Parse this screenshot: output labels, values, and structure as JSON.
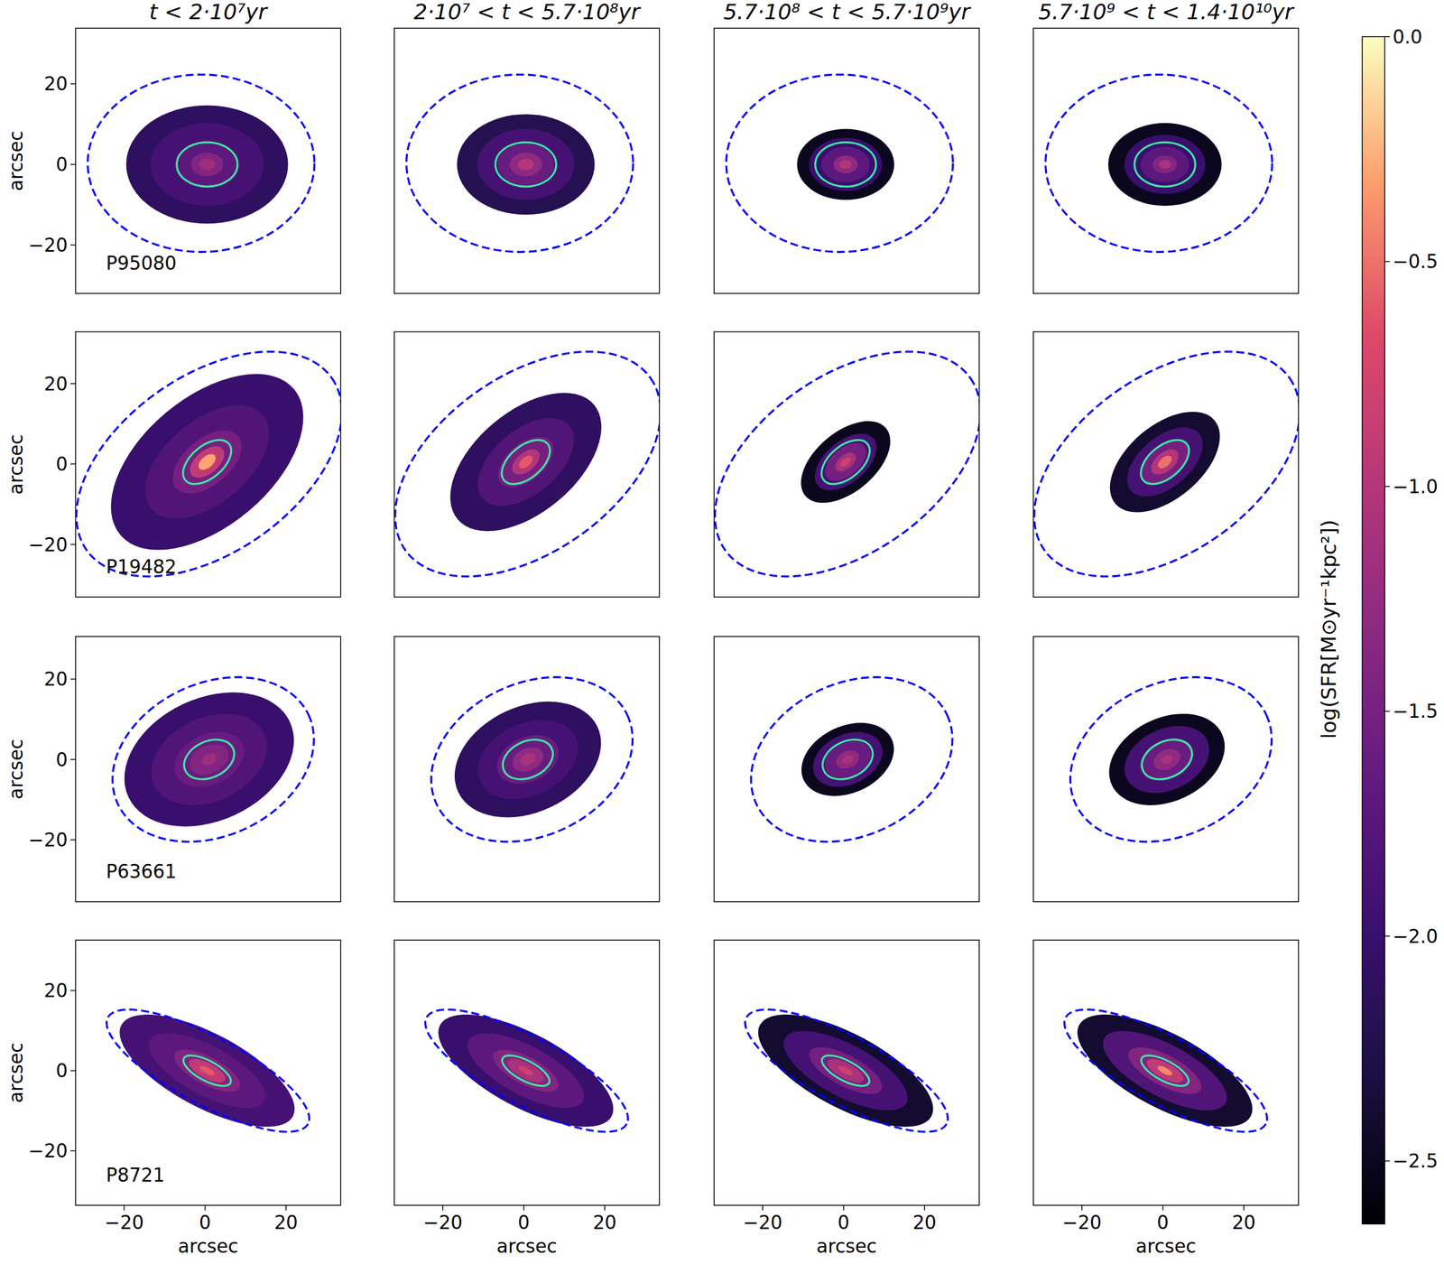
{
  "chart_data": [
    {
      "type": "heatmap",
      "title": "t < 2·10⁷yr",
      "annotation": "P95080",
      "ylabel": "arcsec",
      "xlim": [
        -32,
        33.5
      ],
      "ylim": [
        -32,
        33.8
      ],
      "yticks": [
        {
          "value": -20,
          "label": "−20"
        },
        0,
        20
      ],
      "tick_labels": "y",
      "outer_ellipse": {
        "center": [
          -1,
          0.3
        ],
        "a": 28,
        "b": 22,
        "angle": 0,
        "color": "#0000ff",
        "line_style": "dashed"
      },
      "inner_ellipse": {
        "center": [
          0.5,
          0
        ],
        "a": 7.5,
        "b": 5.5,
        "angle": 0,
        "color": "#3ee6a4",
        "line_style": "solid"
      },
      "profile": [
        {
          "r": 20,
          "value": -2.1
        },
        {
          "r": 14,
          "value": -1.9
        },
        {
          "r": 8,
          "value": -1.7
        },
        {
          "r": 4,
          "value": -1.4
        },
        {
          "r": 2,
          "value": -1.2
        }
      ]
    },
    {
      "type": "heatmap",
      "title": "2·10⁷ < t < 5.7·10⁸yr",
      "xlim": [
        -32,
        33.5
      ],
      "ylim": [
        -32,
        33.8
      ],
      "tick_labels": false,
      "outer_ellipse": {
        "center": [
          -1,
          0.3
        ],
        "a": 28,
        "b": 22,
        "angle": 0,
        "color": "#0000ff",
        "line_style": "dashed"
      },
      "inner_ellipse": {
        "center": [
          0.5,
          0
        ],
        "a": 7.5,
        "b": 5.5,
        "angle": 0,
        "color": "#3ee6a4",
        "line_style": "solid"
      },
      "profile": [
        {
          "r": 17,
          "value": -2.2
        },
        {
          "r": 12,
          "value": -1.9
        },
        {
          "r": 7,
          "value": -1.6
        },
        {
          "r": 4,
          "value": -1.3
        },
        {
          "r": 2,
          "value": -1.0
        }
      ]
    },
    {
      "type": "heatmap",
      "title": "5.7·10⁸ < t < 5.7·10⁹yr",
      "xlim": [
        -32,
        33.5
      ],
      "ylim": [
        -32,
        33.8
      ],
      "tick_labels": false,
      "outer_ellipse": {
        "center": [
          -1,
          0.3
        ],
        "a": 28,
        "b": 22,
        "angle": 0,
        "color": "#0000ff",
        "line_style": "dashed"
      },
      "inner_ellipse": {
        "center": [
          0.5,
          0
        ],
        "a": 7.5,
        "b": 5.5,
        "angle": 0,
        "color": "#3ee6a4",
        "line_style": "solid"
      },
      "profile": [
        {
          "r": 12,
          "value": -2.5
        },
        {
          "r": 9,
          "value": -2.0
        },
        {
          "r": 6,
          "value": -1.7
        },
        {
          "r": 3,
          "value": -1.3
        },
        {
          "r": 1.5,
          "value": -1.0
        }
      ]
    },
    {
      "type": "heatmap",
      "title": "5.7·10⁹ < t < 1.4·10¹⁰yr",
      "xlim": [
        -32,
        33.5
      ],
      "ylim": [
        -32,
        33.8
      ],
      "tick_labels": false,
      "outer_ellipse": {
        "center": [
          -1,
          0.3
        ],
        "a": 28,
        "b": 22,
        "angle": 0,
        "color": "#0000ff",
        "line_style": "dashed"
      },
      "inner_ellipse": {
        "center": [
          0.5,
          0
        ],
        "a": 7.5,
        "b": 5.5,
        "angle": 0,
        "color": "#3ee6a4",
        "line_style": "solid"
      },
      "profile": [
        {
          "r": 14,
          "value": -2.5
        },
        {
          "r": 10,
          "value": -2.0
        },
        {
          "r": 6,
          "value": -1.7
        },
        {
          "r": 3,
          "value": -1.4
        },
        {
          "r": 1.5,
          "value": -1.1
        }
      ]
    },
    {
      "type": "heatmap",
      "annotation": "P19482",
      "ylabel": "arcsec",
      "xlim": [
        -32,
        33.5
      ],
      "ylim": [
        -33.1,
        32.9
      ],
      "yticks": [
        {
          "value": -20,
          "label": "−20"
        },
        0,
        20
      ],
      "tick_labels": "y",
      "outer_ellipse": {
        "center": [
          1,
          0
        ],
        "a": 37,
        "b": 22,
        "angle": 35,
        "color": "#0000ff",
        "line_style": "dashed"
      },
      "inner_ellipse": {
        "center": [
          0.5,
          0.5
        ],
        "a": 7,
        "b": 4,
        "angle": 40,
        "color": "#3ee6a4",
        "line_style": "solid"
      },
      "profile": [
        {
          "r": 28,
          "value": -2.0
        },
        {
          "r": 18,
          "value": -1.8
        },
        {
          "r": 10,
          "value": -1.5
        },
        {
          "r": 5,
          "value": -0.9
        },
        {
          "r": 2.5,
          "value": -0.3
        }
      ]
    },
    {
      "type": "heatmap",
      "xlim": [
        -32,
        33.5
      ],
      "ylim": [
        -33.1,
        32.9
      ],
      "tick_labels": false,
      "outer_ellipse": {
        "center": [
          1,
          0
        ],
        "a": 37,
        "b": 22,
        "angle": 35,
        "color": "#0000ff",
        "line_style": "dashed"
      },
      "inner_ellipse": {
        "center": [
          0.5,
          0.5
        ],
        "a": 7,
        "b": 4,
        "angle": 40,
        "color": "#3ee6a4",
        "line_style": "solid"
      },
      "profile": [
        {
          "r": 22,
          "value": -2.1
        },
        {
          "r": 14,
          "value": -1.8
        },
        {
          "r": 8,
          "value": -1.5
        },
        {
          "r": 4,
          "value": -1.0
        },
        {
          "r": 2,
          "value": -0.6
        }
      ]
    },
    {
      "type": "heatmap",
      "xlim": [
        -32,
        33.5
      ],
      "ylim": [
        -33.1,
        32.9
      ],
      "tick_labels": false,
      "outer_ellipse": {
        "center": [
          1,
          0
        ],
        "a": 37,
        "b": 22,
        "angle": 35,
        "color": "#0000ff",
        "line_style": "dashed"
      },
      "inner_ellipse": {
        "center": [
          0.5,
          0.5
        ],
        "a": 7,
        "b": 4,
        "angle": 40,
        "color": "#3ee6a4",
        "line_style": "solid"
      },
      "profile": [
        {
          "r": 13,
          "value": -2.5
        },
        {
          "r": 9,
          "value": -1.9
        },
        {
          "r": 6,
          "value": -1.5
        },
        {
          "r": 3,
          "value": -1.1
        },
        {
          "r": 1.5,
          "value": -0.8
        }
      ]
    },
    {
      "type": "heatmap",
      "xlim": [
        -32,
        33.5
      ],
      "ylim": [
        -33.1,
        32.9
      ],
      "tick_labels": false,
      "outer_ellipse": {
        "center": [
          1,
          0
        ],
        "a": 37,
        "b": 22,
        "angle": 35,
        "color": "#0000ff",
        "line_style": "dashed"
      },
      "inner_ellipse": {
        "center": [
          0.5,
          0.5
        ],
        "a": 7,
        "b": 4,
        "angle": 40,
        "color": "#3ee6a4",
        "line_style": "solid"
      },
      "profile": [
        {
          "r": 16,
          "value": -2.4
        },
        {
          "r": 11,
          "value": -1.9
        },
        {
          "r": 7,
          "value": -1.5
        },
        {
          "r": 4,
          "value": -1.0
        },
        {
          "r": 2,
          "value": -0.5
        }
      ]
    },
    {
      "type": "heatmap",
      "annotation": "P63661",
      "ylabel": "arcsec",
      "xlim": [
        -32,
        33.5
      ],
      "ylim": [
        -35.4,
        30.6
      ],
      "yticks": [
        {
          "value": -20,
          "label": "−20"
        },
        0,
        20
      ],
      "tick_labels": "y",
      "outer_ellipse": {
        "center": [
          2,
          0
        ],
        "a": 26,
        "b": 19,
        "angle": 25,
        "color": "#0000ff",
        "line_style": "dashed"
      },
      "inner_ellipse": {
        "center": [
          1,
          0
        ],
        "a": 6.5,
        "b": 4.5,
        "angle": 25,
        "color": "#3ee6a4",
        "line_style": "solid"
      },
      "profile": [
        {
          "r": 22,
          "value": -2.0
        },
        {
          "r": 15,
          "value": -1.8
        },
        {
          "r": 9,
          "value": -1.6
        },
        {
          "r": 5,
          "value": -1.4
        },
        {
          "r": 2,
          "value": -1.2
        }
      ]
    },
    {
      "type": "heatmap",
      "xlim": [
        -32,
        33.5
      ],
      "ylim": [
        -35.4,
        30.6
      ],
      "tick_labels": false,
      "outer_ellipse": {
        "center": [
          2,
          0
        ],
        "a": 26,
        "b": 19,
        "angle": 25,
        "color": "#0000ff",
        "line_style": "dashed"
      },
      "inner_ellipse": {
        "center": [
          1,
          0
        ],
        "a": 6.5,
        "b": 4.5,
        "angle": 25,
        "color": "#3ee6a4",
        "line_style": "solid"
      },
      "profile": [
        {
          "r": 19,
          "value": -2.1
        },
        {
          "r": 13,
          "value": -1.9
        },
        {
          "r": 8,
          "value": -1.6
        },
        {
          "r": 4,
          "value": -1.3
        },
        {
          "r": 2,
          "value": -1.1
        }
      ]
    },
    {
      "type": "heatmap",
      "xlim": [
        -32,
        33.5
      ],
      "ylim": [
        -35.4,
        30.6
      ],
      "tick_labels": false,
      "outer_ellipse": {
        "center": [
          2,
          0
        ],
        "a": 26,
        "b": 19,
        "angle": 25,
        "color": "#0000ff",
        "line_style": "dashed"
      },
      "inner_ellipse": {
        "center": [
          1,
          0
        ],
        "a": 6.5,
        "b": 4.5,
        "angle": 25,
        "color": "#3ee6a4",
        "line_style": "solid"
      },
      "profile": [
        {
          "r": 12,
          "value": -2.5
        },
        {
          "r": 9,
          "value": -1.9
        },
        {
          "r": 6,
          "value": -1.6
        },
        {
          "r": 3,
          "value": -1.3
        },
        {
          "r": 1.5,
          "value": -1.1
        }
      ]
    },
    {
      "type": "heatmap",
      "xlim": [
        -32,
        33.5
      ],
      "ylim": [
        -35.4,
        30.6
      ],
      "tick_labels": false,
      "outer_ellipse": {
        "center": [
          2,
          0
        ],
        "a": 26,
        "b": 19,
        "angle": 25,
        "color": "#0000ff",
        "line_style": "dashed"
      },
      "inner_ellipse": {
        "center": [
          1,
          0
        ],
        "a": 6.5,
        "b": 4.5,
        "angle": 25,
        "color": "#3ee6a4",
        "line_style": "solid"
      },
      "profile": [
        {
          "r": 15,
          "value": -2.5
        },
        {
          "r": 11,
          "value": -1.9
        },
        {
          "r": 7,
          "value": -1.6
        },
        {
          "r": 3.5,
          "value": -1.3
        },
        {
          "r": 1.5,
          "value": -1.1
        }
      ]
    },
    {
      "type": "heatmap",
      "annotation": "P8721",
      "ylabel": "arcsec",
      "xlabel": "arcsec",
      "xlim": [
        -32,
        33.5
      ],
      "ylim": [
        -33.6,
        32.6
      ],
      "xticks": [
        {
          "value": -20,
          "label": "−20"
        },
        0,
        20
      ],
      "yticks": [
        {
          "value": -20,
          "label": "−20"
        },
        0,
        20
      ],
      "tick_labels": true,
      "outer_ellipse": {
        "center": [
          0.7,
          0
        ],
        "a": 28,
        "b": 8.5,
        "angle": -28,
        "color": "#0000ff",
        "line_style": "dashed"
      },
      "inner_ellipse": {
        "center": [
          0.5,
          0
        ],
        "a": 6.5,
        "b": 2.5,
        "angle": -28,
        "color": "#3ee6a4",
        "line_style": "solid"
      },
      "profile": [
        {
          "r": 24,
          "value": -1.9
        },
        {
          "r": 16,
          "value": -1.7
        },
        {
          "r": 9,
          "value": -1.4
        },
        {
          "r": 5,
          "value": -0.9
        },
        {
          "r": 2,
          "value": -0.6
        }
      ]
    },
    {
      "type": "heatmap",
      "xlabel": "arcsec",
      "xlim": [
        -32,
        33.5
      ],
      "ylim": [
        -33.6,
        32.6
      ],
      "xticks": [
        {
          "value": -20,
          "label": "−20"
        },
        0,
        20
      ],
      "tick_labels": "x",
      "outer_ellipse": {
        "center": [
          0.7,
          0
        ],
        "a": 28,
        "b": 8.5,
        "angle": -28,
        "color": "#0000ff",
        "line_style": "dashed"
      },
      "inner_ellipse": {
        "center": [
          0.5,
          0
        ],
        "a": 6.5,
        "b": 2.5,
        "angle": -28,
        "color": "#3ee6a4",
        "line_style": "solid"
      },
      "profile": [
        {
          "r": 24,
          "value": -2.0
        },
        {
          "r": 16,
          "value": -1.7
        },
        {
          "r": 9,
          "value": -1.4
        },
        {
          "r": 5,
          "value": -1.1
        },
        {
          "r": 2,
          "value": -0.8
        }
      ]
    },
    {
      "type": "heatmap",
      "xlabel": "arcsec",
      "xlim": [
        -32,
        33.5
      ],
      "ylim": [
        -33.6,
        32.6
      ],
      "xticks": [
        {
          "value": -20,
          "label": "−20"
        },
        0,
        20
      ],
      "tick_labels": "x",
      "outer_ellipse": {
        "center": [
          0.7,
          0
        ],
        "a": 28,
        "b": 8.5,
        "angle": -28,
        "color": "#0000ff",
        "line_style": "dashed"
      },
      "inner_ellipse": {
        "center": [
          0.5,
          0
        ],
        "a": 6.5,
        "b": 2.5,
        "angle": -28,
        "color": "#3ee6a4",
        "line_style": "solid"
      },
      "profile": [
        {
          "r": 24,
          "value": -2.4
        },
        {
          "r": 17,
          "value": -1.9
        },
        {
          "r": 10,
          "value": -1.5
        },
        {
          "r": 5,
          "value": -1.1
        },
        {
          "r": 2,
          "value": -0.8
        }
      ]
    },
    {
      "type": "heatmap",
      "xlabel": "arcsec",
      "xlim": [
        -32,
        33.5
      ],
      "ylim": [
        -33.6,
        32.6
      ],
      "xticks": [
        {
          "value": -20,
          "label": "−20"
        },
        0,
        20
      ],
      "tick_labels": "x",
      "outer_ellipse": {
        "center": [
          0.7,
          0
        ],
        "a": 28,
        "b": 8.5,
        "angle": -28,
        "color": "#0000ff",
        "line_style": "dashed"
      },
      "inner_ellipse": {
        "center": [
          0.5,
          0
        ],
        "a": 6.5,
        "b": 2.5,
        "angle": -28,
        "color": "#3ee6a4",
        "line_style": "solid"
      },
      "profile": [
        {
          "r": 24,
          "value": -2.4
        },
        {
          "r": 17,
          "value": -1.8
        },
        {
          "r": 10,
          "value": -1.4
        },
        {
          "r": 5,
          "value": -0.9
        },
        {
          "r": 2,
          "value": -0.4
        }
      ]
    }
  ],
  "colorbar": {
    "label": "log(SFR[M⊙yr⁻¹kpc²])",
    "range": [
      -2.64,
      0
    ],
    "ticks": [
      {
        "value": 0,
        "label": "0.0"
      },
      {
        "value": -0.5,
        "label": "−0.5"
      },
      {
        "value": -1,
        "label": "−1.0"
      },
      {
        "value": -1.5,
        "label": "−1.5"
      },
      {
        "value": -2,
        "label": "−2.0"
      },
      {
        "value": -2.5,
        "label": "−2.5"
      }
    ]
  }
}
